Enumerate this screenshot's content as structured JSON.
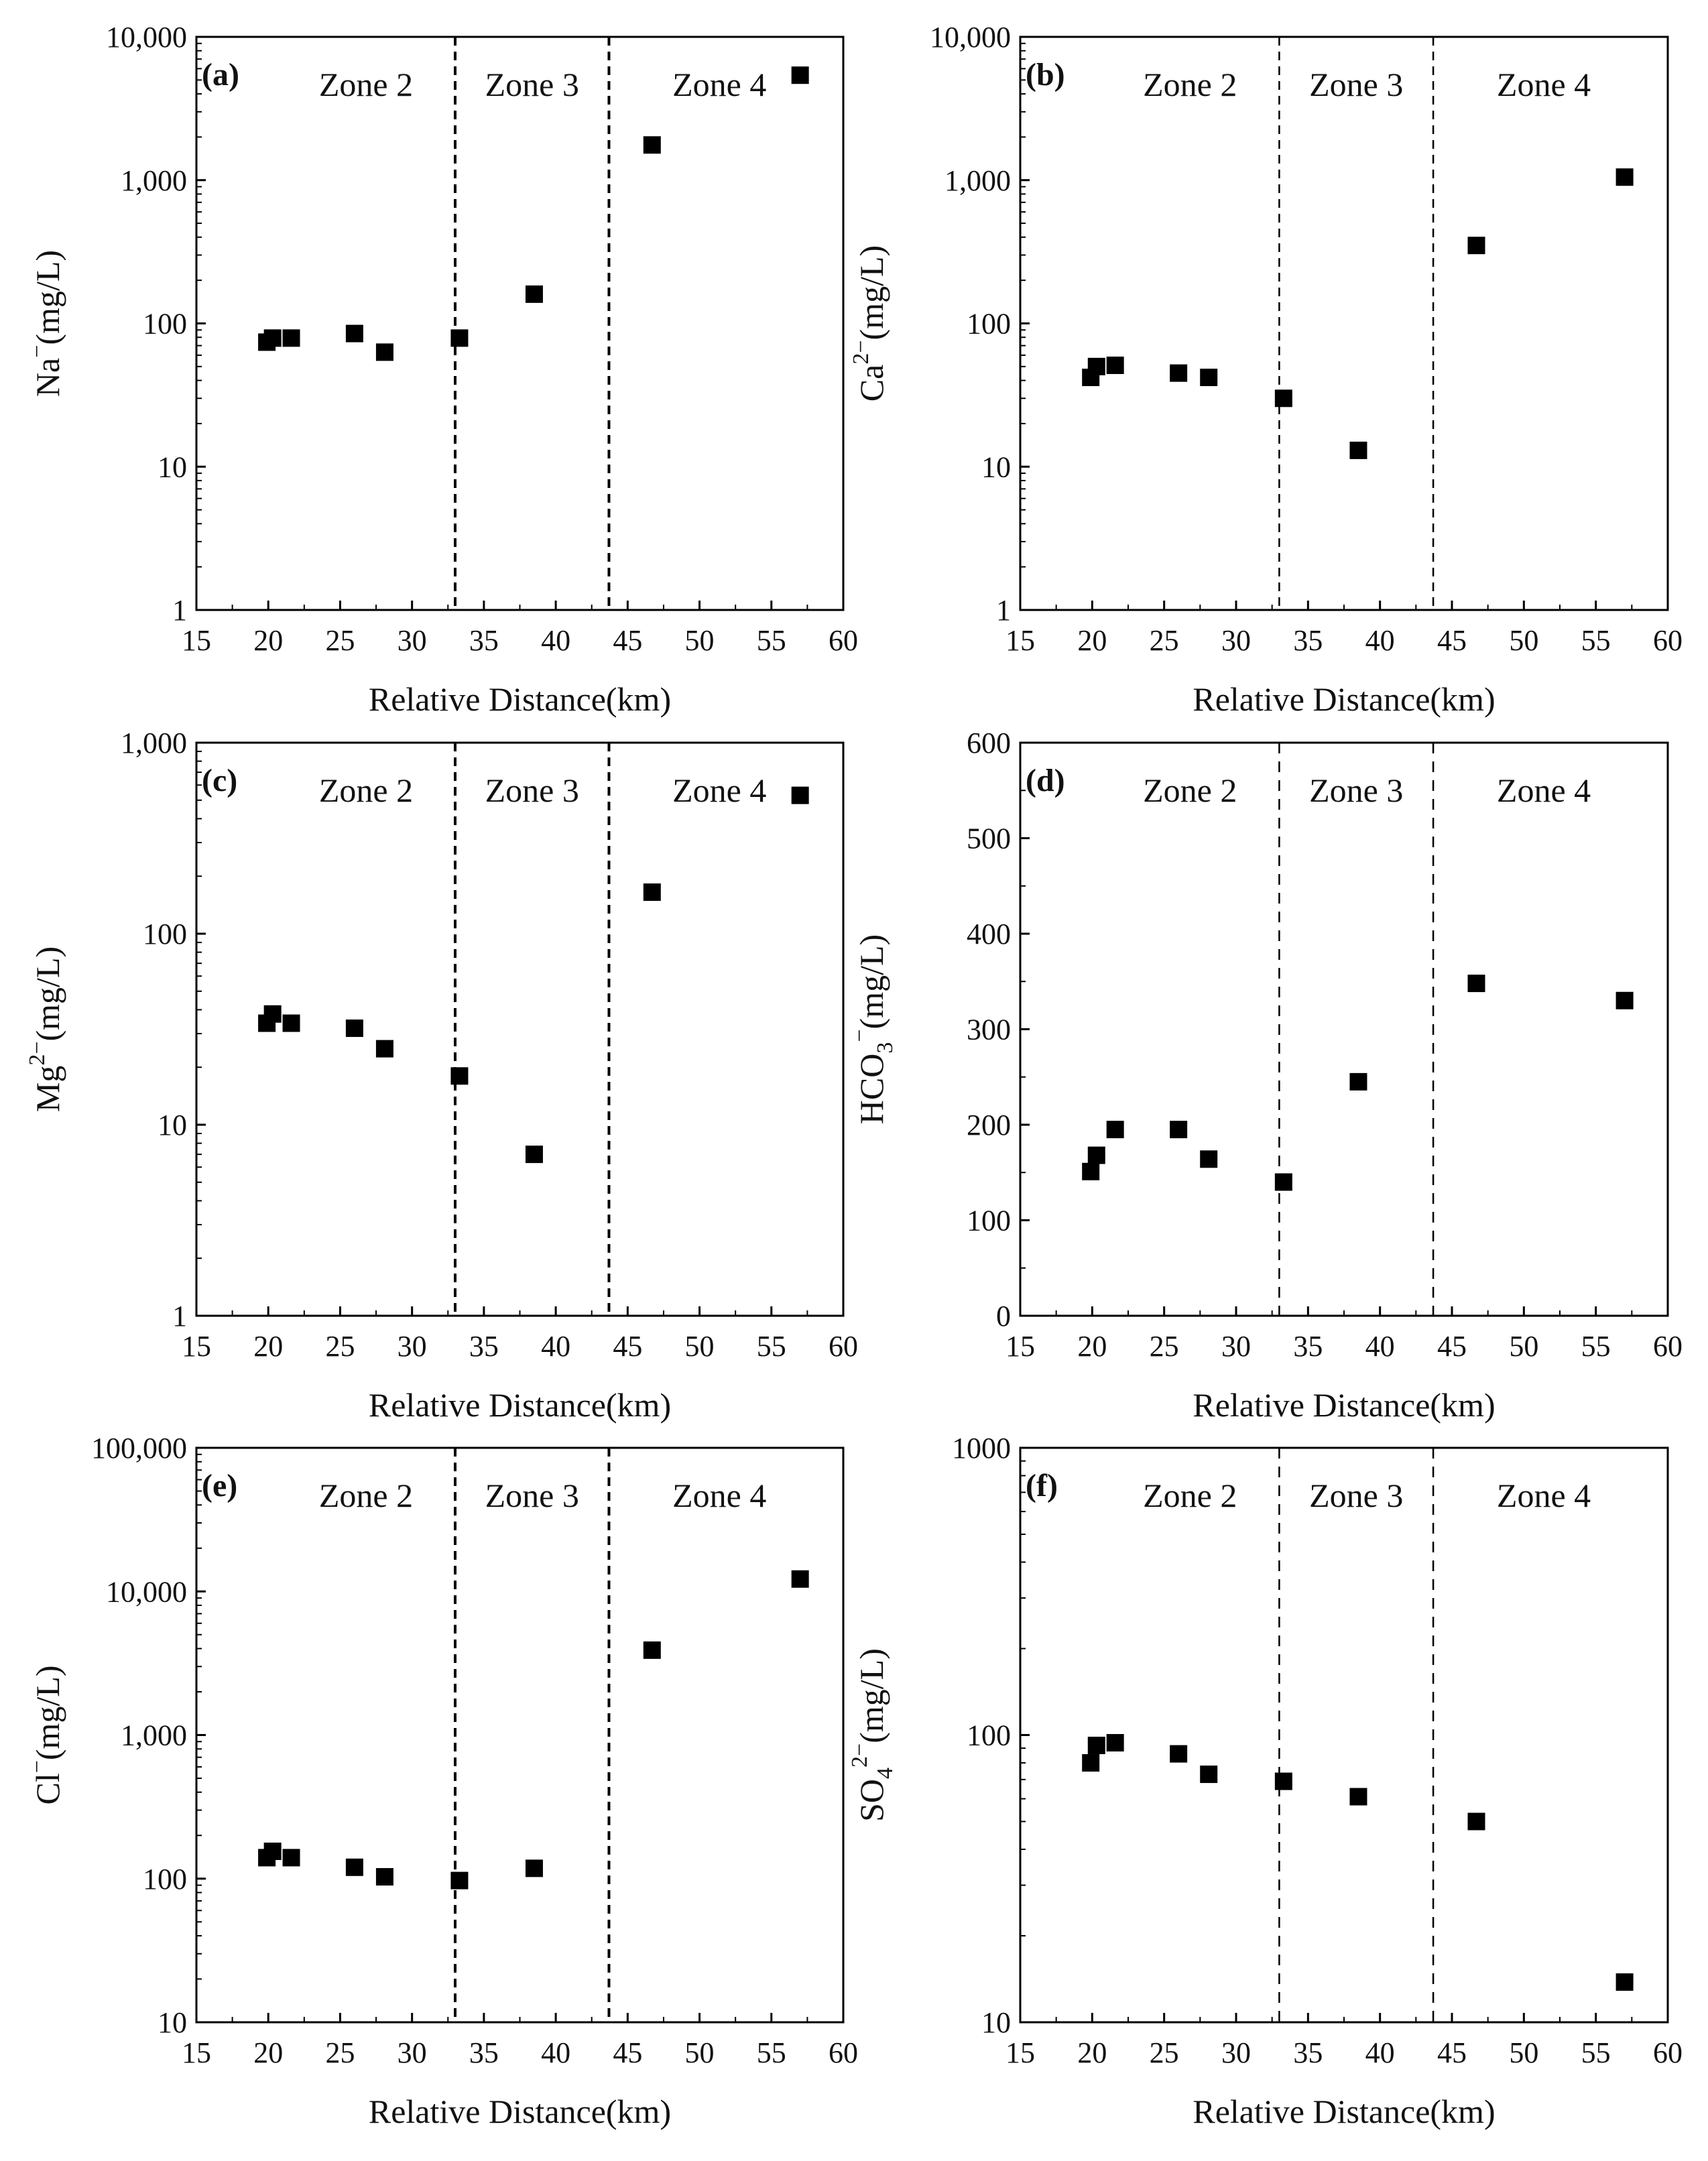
{
  "figure": {
    "xlabel": "Relative Distance(km)",
    "x_ticks": [
      "15",
      "20",
      "25",
      "30",
      "35",
      "40",
      "45",
      "50",
      "55",
      "60"
    ],
    "zone_labels": [
      "Zone 2",
      "Zone 3",
      "Zone 4"
    ],
    "marker_color": "#000000",
    "boundary_color": "#000000"
  },
  "chart_data": [
    {
      "type": "scatter",
      "panel_label": "(a)",
      "ylabel_base": "Na",
      "ylabel_sup": "−",
      "ylabel_rest": "(mg/L)",
      "xlabel": "Relative Distance(km)",
      "xlim": [
        15,
        60
      ],
      "ylim": [
        1,
        10000
      ],
      "yscale": "log",
      "y_ticks": [
        1,
        10,
        100,
        1000,
        10000
      ],
      "y_tick_labels": [
        "1",
        "10",
        "100",
        "1,000",
        "10,000"
      ],
      "zone_boundaries": [
        33,
        43.7
      ],
      "zones": [
        "Zone 2",
        "Zone 3",
        "Zone 4"
      ],
      "x": [
        19.9,
        20.3,
        21.6,
        26,
        28.1,
        33.3,
        38.5,
        46.7,
        57
      ],
      "y": [
        74,
        79,
        79,
        85,
        63,
        79,
        160,
        1760,
        5400
      ]
    },
    {
      "type": "scatter",
      "panel_label": "(b)",
      "ylabel_base": "Ca",
      "ylabel_sup": "2−",
      "ylabel_rest": "(mg/L)",
      "xlabel": "Relative Distance(km)",
      "xlim": [
        15,
        60
      ],
      "ylim": [
        1,
        10000
      ],
      "yscale": "log",
      "y_ticks": [
        1,
        10,
        100,
        1000,
        10000
      ],
      "y_tick_labels": [
        "1",
        "10",
        "100",
        "1,000",
        "10,000"
      ],
      "zone_boundaries": [
        33,
        43.7
      ],
      "zones": [
        "Zone 2",
        "Zone 3",
        "Zone 4"
      ],
      "x": [
        19.9,
        20.3,
        21.6,
        26,
        28.1,
        33.3,
        38.5,
        46.7,
        57
      ],
      "y": [
        42,
        50,
        51,
        45,
        42,
        30,
        13,
        350,
        1050
      ]
    },
    {
      "type": "scatter",
      "panel_label": "(c)",
      "ylabel_base": "Mg",
      "ylabel_sup": "2−",
      "ylabel_rest": "(mg/L)",
      "xlabel": "Relative Distance(km)",
      "xlim": [
        15,
        60
      ],
      "ylim": [
        1,
        1000
      ],
      "yscale": "log",
      "y_ticks": [
        1,
        10,
        100,
        1000
      ],
      "y_tick_labels": [
        "1",
        "10",
        "100",
        "1,000"
      ],
      "zone_boundaries": [
        33,
        43.7
      ],
      "zones": [
        "Zone 2",
        "Zone 3",
        "Zone 4"
      ],
      "x": [
        19.9,
        20.3,
        21.6,
        26,
        28.1,
        33.3,
        38.5,
        46.7,
        57
      ],
      "y": [
        34,
        38,
        34,
        32,
        25,
        18,
        7,
        165,
        530
      ]
    },
    {
      "type": "scatter",
      "panel_label": "(d)",
      "ylabel_base": "HCO",
      "ylabel_sub": "3",
      "ylabel_sup": "−",
      "ylabel_rest": "(mg/L)",
      "xlabel": "Relative Distance(km)",
      "xlim": [
        15,
        60
      ],
      "ylim": [
        0,
        600
      ],
      "yscale": "linear",
      "y_ticks": [
        0,
        100,
        200,
        300,
        400,
        500,
        600
      ],
      "y_tick_labels": [
        "0",
        "100",
        "200",
        "300",
        "400",
        "500",
        "600"
      ],
      "zone_boundaries": [
        33,
        43.7
      ],
      "zones": [
        "Zone 2",
        "Zone 3",
        "Zone 4"
      ],
      "x": [
        19.9,
        20.3,
        21.6,
        26,
        28.1,
        33.3,
        38.5,
        46.7,
        57
      ],
      "y": [
        151,
        168,
        195,
        195,
        164,
        140,
        245,
        348,
        330
      ]
    },
    {
      "type": "scatter",
      "panel_label": "(e)",
      "ylabel_base": "Cl",
      "ylabel_sup": "−",
      "ylabel_rest": "(mg/L)",
      "xlabel": "Relative Distance(km)",
      "xlim": [
        15,
        60
      ],
      "ylim": [
        10,
        100000
      ],
      "yscale": "log",
      "y_ticks": [
        10,
        100,
        1000,
        10000,
        100000
      ],
      "y_tick_labels": [
        "10",
        "100",
        "1,000",
        "10,000",
        "100,000"
      ],
      "zone_boundaries": [
        33,
        43.7
      ],
      "zones": [
        "Zone 2",
        "Zone 3",
        "Zone 4"
      ],
      "x": [
        19.9,
        20.3,
        21.6,
        26,
        28.1,
        33.3,
        38.5,
        46.7,
        57
      ],
      "y": [
        140,
        155,
        140,
        120,
        103,
        97,
        118,
        3900,
        12200
      ]
    },
    {
      "type": "scatter",
      "panel_label": "(f)",
      "ylabel_base": "SO",
      "ylabel_sub": "4",
      "ylabel_sup": "2−",
      "ylabel_rest": "(mg/L)",
      "xlabel": "Relative Distance(km)",
      "xlim": [
        15,
        60
      ],
      "ylim": [
        10,
        1000
      ],
      "yscale": "log",
      "y_ticks": [
        10,
        100,
        1000
      ],
      "y_tick_labels": [
        "10",
        "100",
        "1000"
      ],
      "zone_boundaries": [
        33,
        43.7
      ],
      "zones": [
        "Zone 2",
        "Zone 3",
        "Zone 4"
      ],
      "x": [
        19.9,
        20.3,
        21.6,
        26,
        28.1,
        33.3,
        38.5,
        46.7,
        57
      ],
      "y": [
        80,
        92,
        94,
        86,
        73,
        69,
        61,
        50,
        13.8
      ]
    }
  ]
}
